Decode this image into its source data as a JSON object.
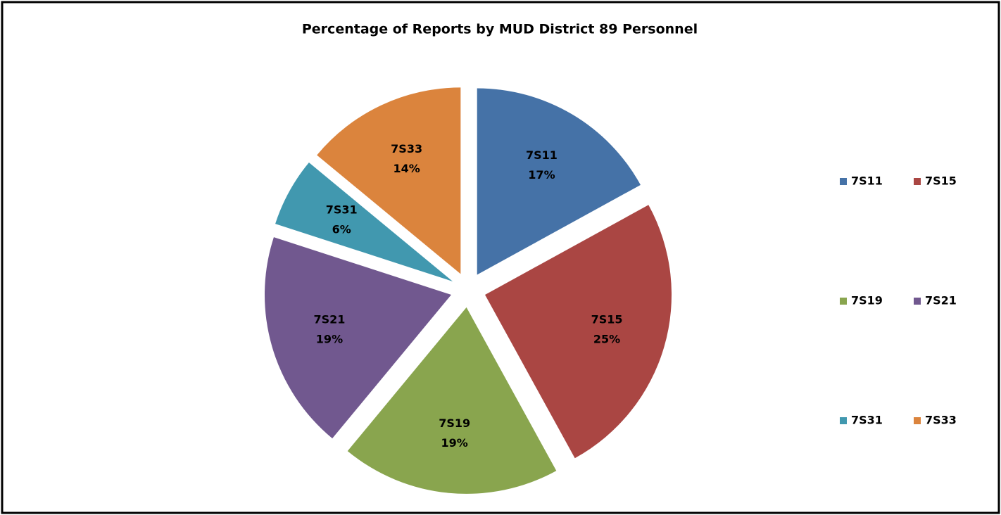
{
  "chart_data": {
    "type": "pie",
    "title": "Percentage of Reports by MUD District 89 Personnel",
    "categories": [
      "7S11",
      "7S15",
      "7S19",
      "7S21",
      "7S31",
      "7S33"
    ],
    "values": [
      17,
      25,
      19,
      19,
      6,
      14
    ],
    "value_labels": [
      "17%",
      "25%",
      "19%",
      "19%",
      "6%",
      "14%"
    ],
    "colors": [
      "#4572a7",
      "#aa4643",
      "#89a54e",
      "#71588f",
      "#4198af",
      "#db843d"
    ],
    "legend": "right"
  }
}
